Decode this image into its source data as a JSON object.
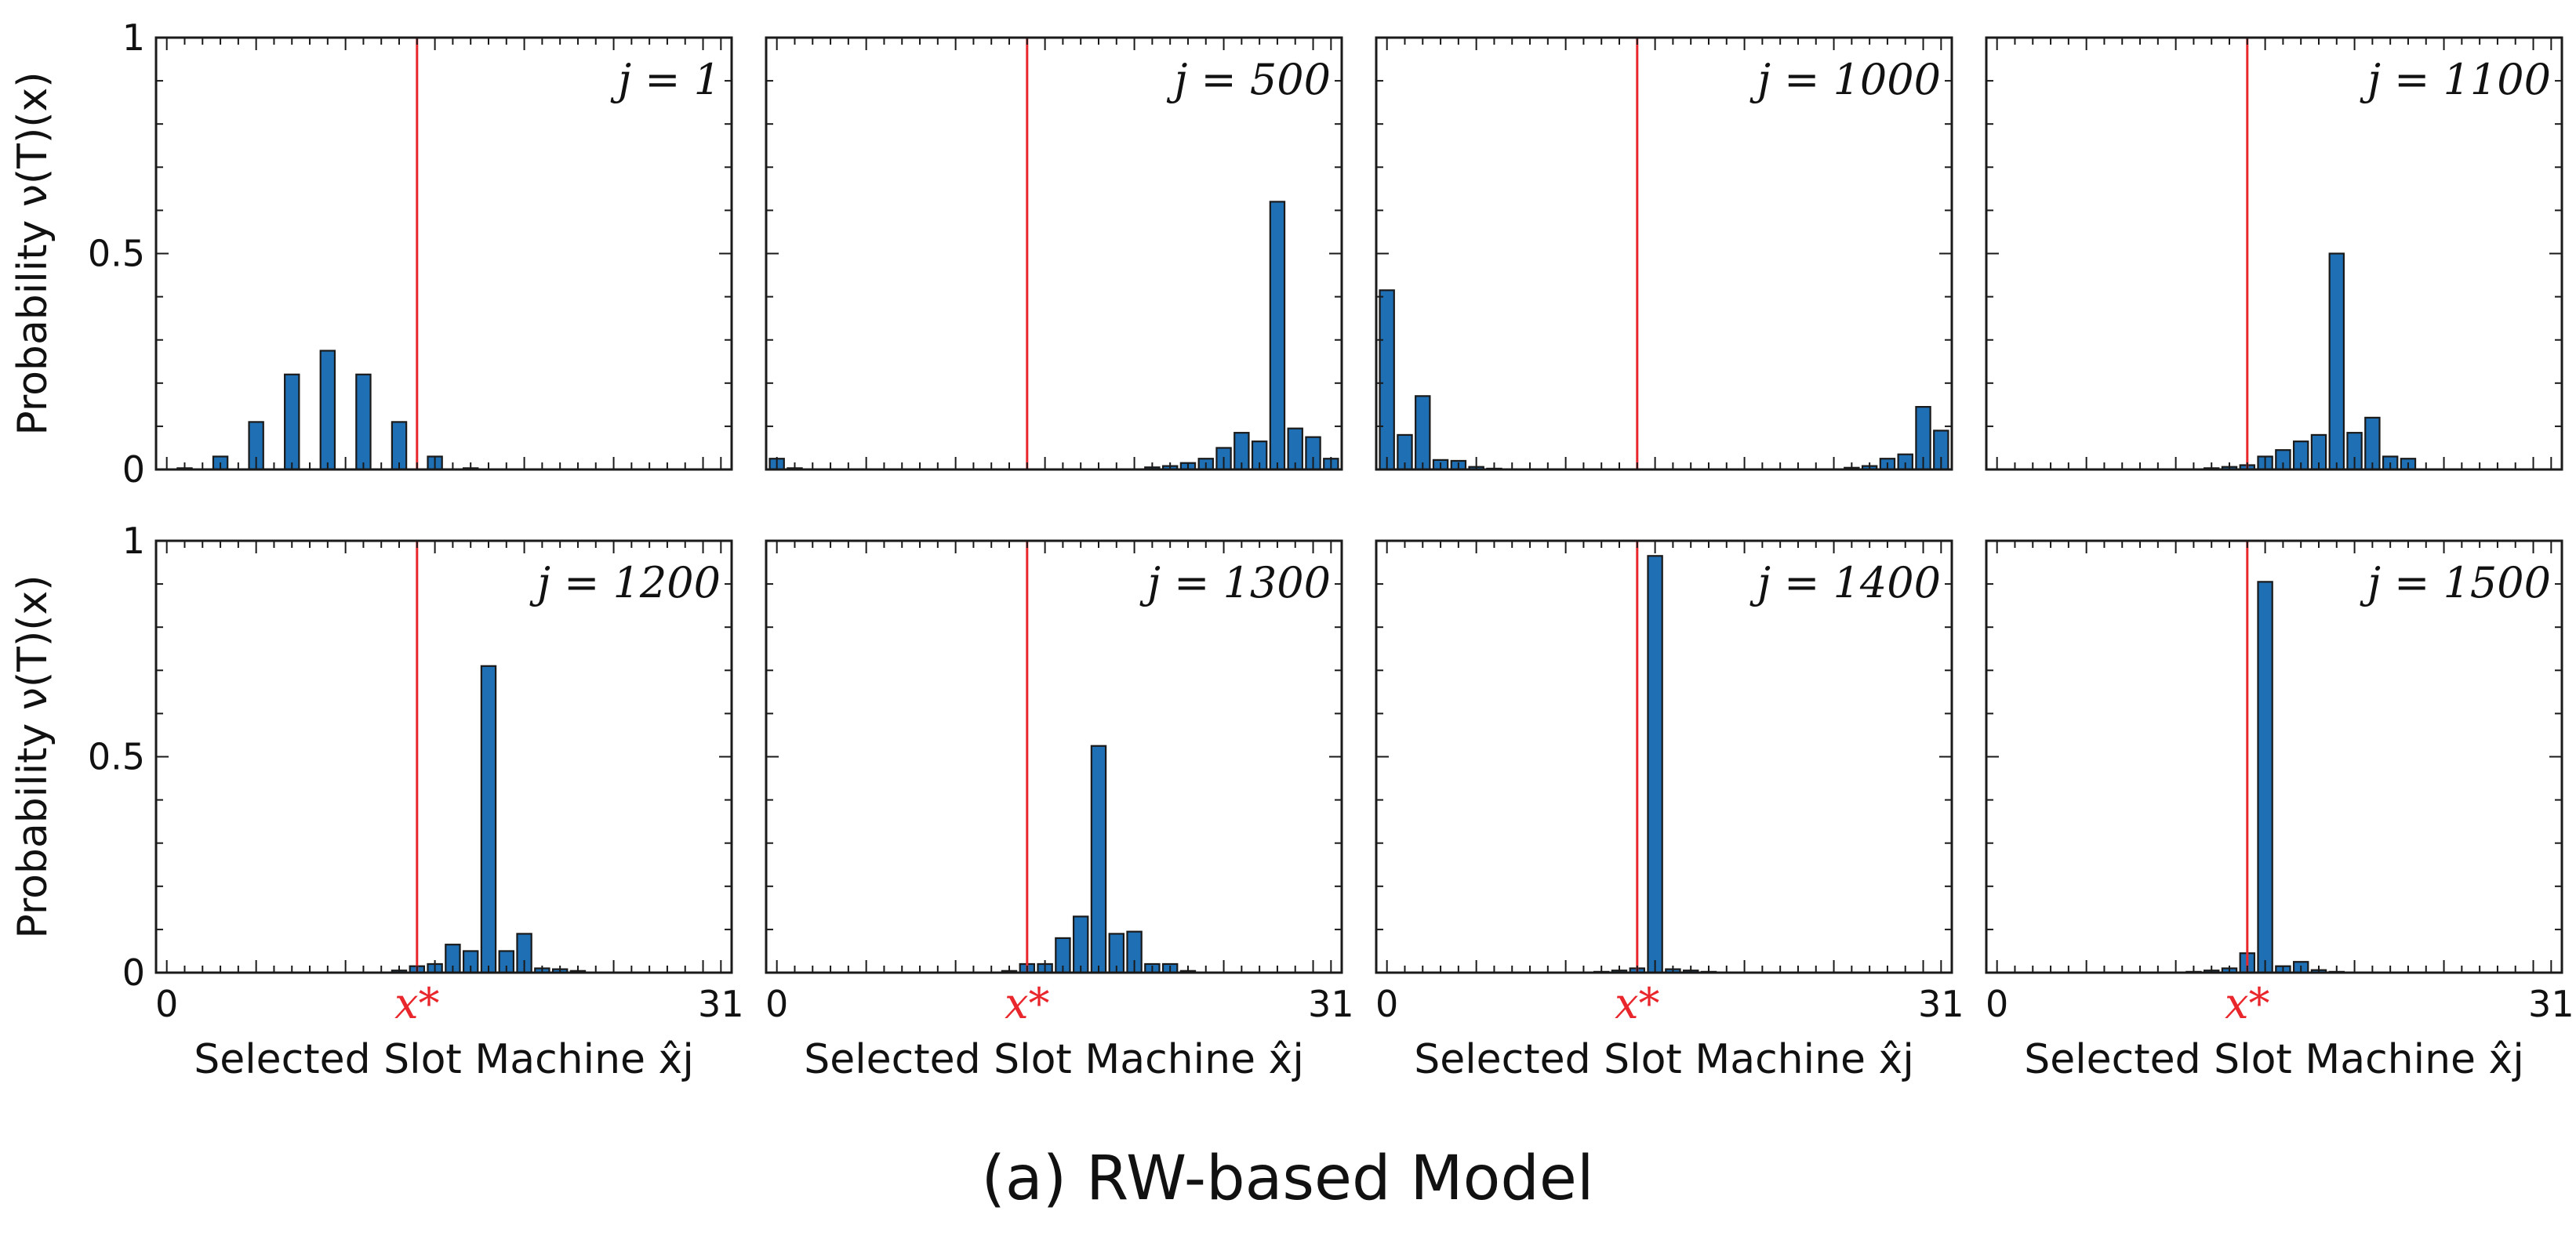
{
  "figure": {
    "caption": "(a) RW-based Model",
    "bar_color": "#1f6fb4",
    "bar_edge_color": "#1a1a1a",
    "marker_color": "#e8262b"
  },
  "chart_data": [
    {
      "type": "bar",
      "panel_label": "j = 1",
      "ylabel": "Probability ν(T)(x)",
      "xlabel": "Selected Slot Machine x̂j",
      "xlim": [
        0,
        31
      ],
      "ylim": [
        0,
        1
      ],
      "x_ticks": [
        "0",
        "31"
      ],
      "y_ticks": [
        "0",
        "0.5",
        "1"
      ],
      "marker_label": "x*",
      "marker_x": 14,
      "x": [
        0,
        1,
        2,
        3,
        4,
        5,
        6,
        7,
        8,
        9,
        10,
        11,
        12,
        13,
        14,
        15,
        16,
        17,
        18,
        19,
        20,
        21,
        22,
        23,
        24,
        25,
        26,
        27,
        28,
        29,
        30,
        31
      ],
      "values": [
        0,
        0.003,
        0,
        0.03,
        0,
        0.11,
        0,
        0.22,
        0,
        0.275,
        0,
        0.22,
        0,
        0.11,
        0,
        0.03,
        0,
        0.003,
        0,
        0,
        0,
        0,
        0,
        0,
        0,
        0,
        0,
        0,
        0,
        0,
        0,
        0
      ]
    },
    {
      "type": "bar",
      "panel_label": "j = 500",
      "ylabel": "",
      "xlabel": "Selected Slot Machine x̂j",
      "xlim": [
        0,
        31
      ],
      "ylim": [
        0,
        1
      ],
      "x_ticks": [
        "0",
        "31"
      ],
      "y_ticks": [],
      "marker_label": "x*",
      "marker_x": 14,
      "x": [
        0,
        1,
        2,
        3,
        4,
        5,
        6,
        7,
        8,
        9,
        10,
        11,
        12,
        13,
        14,
        15,
        16,
        17,
        18,
        19,
        20,
        21,
        22,
        23,
        24,
        25,
        26,
        27,
        28,
        29,
        30,
        31
      ],
      "values": [
        0.025,
        0.003,
        0,
        0,
        0,
        0,
        0,
        0,
        0,
        0,
        0,
        0,
        0,
        0,
        0,
        0,
        0,
        0,
        0,
        0,
        0,
        0.005,
        0.008,
        0.015,
        0.025,
        0.05,
        0.085,
        0.065,
        0.62,
        0.095,
        0.075,
        0.025
      ]
    },
    {
      "type": "bar",
      "panel_label": "j = 1000",
      "ylabel": "",
      "xlabel": "Selected Slot Machine x̂j",
      "xlim": [
        0,
        31
      ],
      "ylim": [
        0,
        1
      ],
      "x_ticks": [
        "0",
        "31"
      ],
      "y_ticks": [],
      "marker_label": "x*",
      "marker_x": 14,
      "x": [
        0,
        1,
        2,
        3,
        4,
        5,
        6,
        7,
        8,
        9,
        10,
        11,
        12,
        13,
        14,
        15,
        16,
        17,
        18,
        19,
        20,
        21,
        22,
        23,
        24,
        25,
        26,
        27,
        28,
        29,
        30,
        31
      ],
      "values": [
        0.415,
        0.08,
        0.17,
        0.022,
        0.02,
        0.006,
        0.002,
        0,
        0,
        0,
        0,
        0,
        0,
        0,
        0,
        0,
        0,
        0,
        0,
        0,
        0,
        0,
        0,
        0,
        0,
        0,
        0.004,
        0.008,
        0.025,
        0.035,
        0.145,
        0.09
      ]
    },
    {
      "type": "bar",
      "panel_label": "j = 1100",
      "ylabel": "",
      "xlabel": "Selected Slot Machine x̂j",
      "xlim": [
        0,
        31
      ],
      "ylim": [
        0,
        1
      ],
      "x_ticks": [
        "0",
        "31"
      ],
      "y_ticks": [],
      "marker_label": "x*",
      "marker_x": 14,
      "x": [
        0,
        1,
        2,
        3,
        4,
        5,
        6,
        7,
        8,
        9,
        10,
        11,
        12,
        13,
        14,
        15,
        16,
        17,
        18,
        19,
        20,
        21,
        22,
        23,
        24,
        25,
        26,
        27,
        28,
        29,
        30,
        31
      ],
      "values": [
        0,
        0,
        0,
        0,
        0,
        0,
        0,
        0,
        0,
        0,
        0,
        0,
        0.003,
        0.006,
        0.01,
        0.03,
        0.045,
        0.065,
        0.08,
        0.5,
        0.085,
        0.12,
        0.03,
        0.025,
        0,
        0,
        0,
        0,
        0,
        0,
        0,
        0
      ]
    },
    {
      "type": "bar",
      "panel_label": "j = 1200",
      "ylabel": "Probability ν(T)(x)",
      "xlabel": "Selected Slot Machine x̂j",
      "xlim": [
        0,
        31
      ],
      "ylim": [
        0,
        1
      ],
      "x_ticks": [
        "0",
        "31"
      ],
      "y_ticks": [
        "0",
        "0.5",
        "1"
      ],
      "marker_label": "x*",
      "marker_x": 14,
      "x": [
        0,
        1,
        2,
        3,
        4,
        5,
        6,
        7,
        8,
        9,
        10,
        11,
        12,
        13,
        14,
        15,
        16,
        17,
        18,
        19,
        20,
        21,
        22,
        23,
        24,
        25,
        26,
        27,
        28,
        29,
        30,
        31
      ],
      "values": [
        0,
        0,
        0,
        0,
        0,
        0,
        0,
        0,
        0,
        0,
        0,
        0,
        0,
        0.005,
        0.015,
        0.02,
        0.065,
        0.05,
        0.71,
        0.05,
        0.09,
        0.01,
        0.008,
        0.004,
        0,
        0,
        0,
        0,
        0,
        0,
        0,
        0
      ]
    },
    {
      "type": "bar",
      "panel_label": "j = 1300",
      "ylabel": "",
      "xlabel": "Selected Slot Machine x̂j",
      "xlim": [
        0,
        31
      ],
      "ylim": [
        0,
        1
      ],
      "x_ticks": [
        "0",
        "31"
      ],
      "y_ticks": [],
      "marker_label": "x*",
      "marker_x": 14,
      "x": [
        0,
        1,
        2,
        3,
        4,
        5,
        6,
        7,
        8,
        9,
        10,
        11,
        12,
        13,
        14,
        15,
        16,
        17,
        18,
        19,
        20,
        21,
        22,
        23,
        24,
        25,
        26,
        27,
        28,
        29,
        30,
        31
      ],
      "values": [
        0,
        0,
        0,
        0,
        0,
        0,
        0,
        0,
        0,
        0,
        0,
        0,
        0,
        0.004,
        0.02,
        0.02,
        0.08,
        0.13,
        0.525,
        0.09,
        0.095,
        0.02,
        0.02,
        0.004,
        0,
        0,
        0,
        0,
        0,
        0,
        0,
        0
      ]
    },
    {
      "type": "bar",
      "panel_label": "j = 1400",
      "ylabel": "",
      "xlabel": "Selected Slot Machine x̂j",
      "xlim": [
        0,
        31
      ],
      "ylim": [
        0,
        1
      ],
      "x_ticks": [
        "0",
        "31"
      ],
      "y_ticks": [],
      "marker_label": "x*",
      "marker_x": 14,
      "x": [
        0,
        1,
        2,
        3,
        4,
        5,
        6,
        7,
        8,
        9,
        10,
        11,
        12,
        13,
        14,
        15,
        16,
        17,
        18,
        19,
        20,
        21,
        22,
        23,
        24,
        25,
        26,
        27,
        28,
        29,
        30,
        31
      ],
      "values": [
        0,
        0,
        0,
        0,
        0,
        0,
        0,
        0,
        0,
        0,
        0,
        0,
        0.002,
        0.005,
        0.01,
        0.965,
        0.008,
        0.005,
        0.002,
        0,
        0,
        0,
        0,
        0,
        0,
        0,
        0,
        0,
        0,
        0,
        0,
        0
      ]
    },
    {
      "type": "bar",
      "panel_label": "j = 1500",
      "ylabel": "",
      "xlabel": "Selected Slot Machine x̂j",
      "xlim": [
        0,
        31
      ],
      "ylim": [
        0,
        1
      ],
      "x_ticks": [
        "0",
        "31"
      ],
      "y_ticks": [],
      "marker_label": "x*",
      "marker_x": 14,
      "x": [
        0,
        1,
        2,
        3,
        4,
        5,
        6,
        7,
        8,
        9,
        10,
        11,
        12,
        13,
        14,
        15,
        16,
        17,
        18,
        19,
        20,
        21,
        22,
        23,
        24,
        25,
        26,
        27,
        28,
        29,
        30,
        31
      ],
      "values": [
        0,
        0,
        0,
        0,
        0,
        0,
        0,
        0,
        0,
        0,
        0,
        0.002,
        0.005,
        0.01,
        0.045,
        0.905,
        0.015,
        0.025,
        0.006,
        0.002,
        0,
        0,
        0,
        0,
        0,
        0,
        0,
        0,
        0,
        0,
        0,
        0
      ]
    }
  ]
}
